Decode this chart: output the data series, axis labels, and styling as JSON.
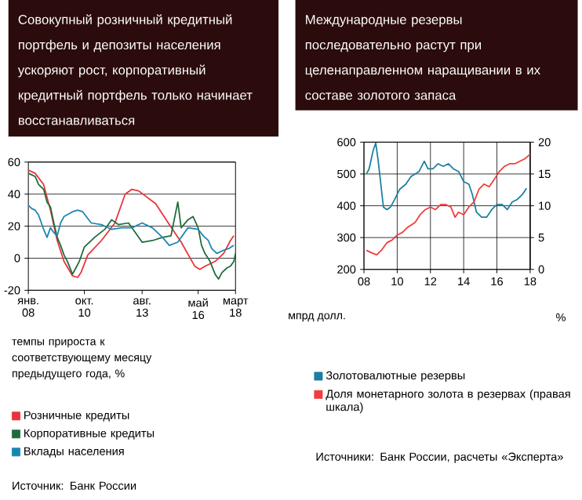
{
  "chart_data": [
    {
      "type": "line",
      "title": "Совокупный розничный кредитный портфель и депозиты населения ускоряют рост, корпоративный кредитный портфель только начинает восстанавливаться",
      "ylabel": "темпы прироста к соответствующему месяцу предыдущего года, %",
      "xlim": [
        "2008-01",
        "2018-03"
      ],
      "xticks": [
        {
          "value": "2008-01",
          "label": "янв. 08"
        },
        {
          "value": "2010-10",
          "label": "окт. 10"
        },
        {
          "value": "2013-08",
          "label": "авг. 13"
        },
        {
          "value": "2016-05",
          "label": "май 16"
        },
        {
          "value": "2018-03",
          "label": "март 18"
        }
      ],
      "ylim": [
        -20,
        60
      ],
      "yticks": [
        -20,
        0,
        20,
        40,
        60
      ],
      "grid": "y",
      "legend": "bottom",
      "annotations": [
        "Источник: Банк России"
      ],
      "series": [
        {
          "name": "Розничные кредиты",
          "color": "#e8333a",
          "x": [
            "2008-01",
            "2008-05",
            "2008-10",
            "2009-02",
            "2009-06",
            "2009-10",
            "2010-03",
            "2010-06",
            "2010-08",
            "2010-12",
            "2011-08",
            "2012-04",
            "2012-10",
            "2013-02",
            "2013-06",
            "2014-04",
            "2014-12",
            "2015-07",
            "2016-03",
            "2016-06",
            "2016-09",
            "2017-03",
            "2017-08",
            "2017-12",
            "2018-02"
          ],
          "values": [
            55,
            53,
            46,
            30,
            11,
            -2,
            -11,
            -12,
            -9,
            2,
            11,
            22,
            40,
            43,
            42,
            34,
            21,
            10,
            -5,
            -7,
            -5,
            -2,
            3,
            11,
            14
          ]
        },
        {
          "name": "Корпоративные кредиты",
          "color": "#1e6b3a",
          "x": [
            "2008-01",
            "2008-03",
            "2008-05",
            "2008-07",
            "2008-10",
            "2008-12",
            "2009-02",
            "2009-04",
            "2009-06",
            "2009-08",
            "2009-10",
            "2009-12",
            "2010-03",
            "2010-05",
            "2010-07",
            "2010-10",
            "2011-04",
            "2011-10",
            "2012-02",
            "2012-06",
            "2012-12",
            "2013-04",
            "2013-08",
            "2014-02",
            "2014-08",
            "2015-01",
            "2015-05",
            "2015-07",
            "2015-11",
            "2016-02",
            "2016-05",
            "2016-07",
            "2016-09",
            "2016-12",
            "2017-03",
            "2017-05",
            "2017-07",
            "2017-10",
            "2017-12",
            "2018-02",
            "2018-03"
          ],
          "values": [
            53,
            52,
            51,
            46,
            43,
            35,
            32,
            22,
            13,
            8,
            2,
            -2,
            -10,
            -6,
            -2,
            7,
            13,
            18,
            24,
            21,
            22,
            16,
            10,
            11,
            13,
            14,
            35,
            19,
            24,
            26,
            19,
            8,
            3,
            -2,
            -10,
            -13,
            -9,
            -6,
            -5,
            -2,
            3
          ]
        },
        {
          "name": "Вклады населения",
          "color": "#1a86b0",
          "x": [
            "2008-01",
            "2008-03",
            "2008-05",
            "2008-07",
            "2008-10",
            "2008-12",
            "2009-02",
            "2009-04",
            "2009-06",
            "2009-08",
            "2009-10",
            "2010-03",
            "2010-06",
            "2010-09",
            "2011-02",
            "2011-08",
            "2012-02",
            "2012-08",
            "2013-02",
            "2013-08",
            "2014-02",
            "2014-08",
            "2014-12",
            "2015-05",
            "2015-11",
            "2016-05",
            "2016-08",
            "2016-11",
            "2017-01",
            "2017-04",
            "2017-08",
            "2017-11",
            "2018-02"
          ],
          "values": [
            33,
            31,
            30,
            27,
            18,
            13,
            19,
            16,
            14,
            22,
            26,
            29,
            30,
            29,
            22,
            21,
            18,
            19,
            19,
            22,
            19,
            13,
            8,
            10,
            19,
            18,
            14,
            11,
            6,
            3,
            5,
            6,
            8
          ]
        }
      ]
    },
    {
      "type": "line",
      "title": "Международные резервы последовательно растут при целенаправленном наращивании в их составе золотого запаса",
      "ylabel": "мпрд долл.",
      "y2label": "%",
      "xlim": [
        2008,
        2018
      ],
      "xticks": [
        {
          "value": 2008,
          "label": "08"
        },
        {
          "value": 2010,
          "label": "10"
        },
        {
          "value": 2012,
          "label": "12"
        },
        {
          "value": 2014,
          "label": "14"
        },
        {
          "value": 2016,
          "label": "16"
        },
        {
          "value": 2018,
          "label": "18"
        }
      ],
      "ylim": [
        200,
        600
      ],
      "yticks": [
        200,
        300,
        400,
        500,
        600
      ],
      "y2lim": [
        0,
        20
      ],
      "y2ticks": [
        0,
        5,
        10,
        15,
        20
      ],
      "grid": true,
      "legend": "bottom",
      "annotations": [
        "Источники: Банк России, расчеты «Эксперта»"
      ],
      "series": [
        {
          "name": "Золотовалютные резервы",
          "color": "#1a7fa0",
          "x": [
            2008.15,
            2008.31,
            2008.55,
            2008.71,
            2008.86,
            2008.98,
            2009.17,
            2009.38,
            2009.6,
            2009.85,
            2010.15,
            2010.52,
            2010.83,
            2011.08,
            2011.32,
            2011.63,
            2011.85,
            2012.15,
            2012.46,
            2012.77,
            2013.08,
            2013.38,
            2013.69,
            2014.0,
            2014.31,
            2014.52,
            2014.77,
            2015.08,
            2015.38,
            2015.69,
            2016.0,
            2016.31,
            2016.62,
            2016.92,
            2017.23,
            2017.54,
            2017.78
          ],
          "values": [
            500,
            516,
            573,
            597,
            540,
            484,
            396,
            388,
            396,
            420,
            452,
            468,
            492,
            500,
            508,
            540,
            516,
            516,
            532,
            524,
            532,
            516,
            508,
            476,
            468,
            436,
            380,
            364,
            364,
            388,
            404,
            404,
            388,
            412,
            420,
            436,
            455
          ]
        },
        {
          "name": "Доля монетарного золота в резервах (правая шкала)",
          "color": "#f03c3c",
          "axis": "y2",
          "x": [
            2008.15,
            2008.46,
            2008.77,
            2009.08,
            2009.38,
            2009.69,
            2010.0,
            2010.31,
            2010.62,
            2011.08,
            2011.38,
            2011.69,
            2012.0,
            2012.31,
            2012.62,
            2012.92,
            2013.23,
            2013.48,
            2013.69,
            2014.0,
            2014.31,
            2014.62,
            2014.92,
            2015.23,
            2015.54,
            2015.85,
            2016.15,
            2016.46,
            2016.77,
            2017.08,
            2017.38,
            2017.69,
            2018.0
          ],
          "values": [
            3.0,
            2.6,
            2.3,
            3.1,
            4.2,
            4.6,
            5.4,
            5.8,
            6.6,
            7.4,
            8.6,
            9.4,
            9.8,
            9.4,
            10.2,
            10.2,
            9.8,
            8.2,
            9.0,
            8.6,
            9.8,
            10.6,
            12.6,
            13.4,
            13.0,
            14.2,
            15.4,
            16.2,
            16.6,
            16.6,
            17.0,
            17.4,
            18.1
          ]
        }
      ]
    }
  ]
}
